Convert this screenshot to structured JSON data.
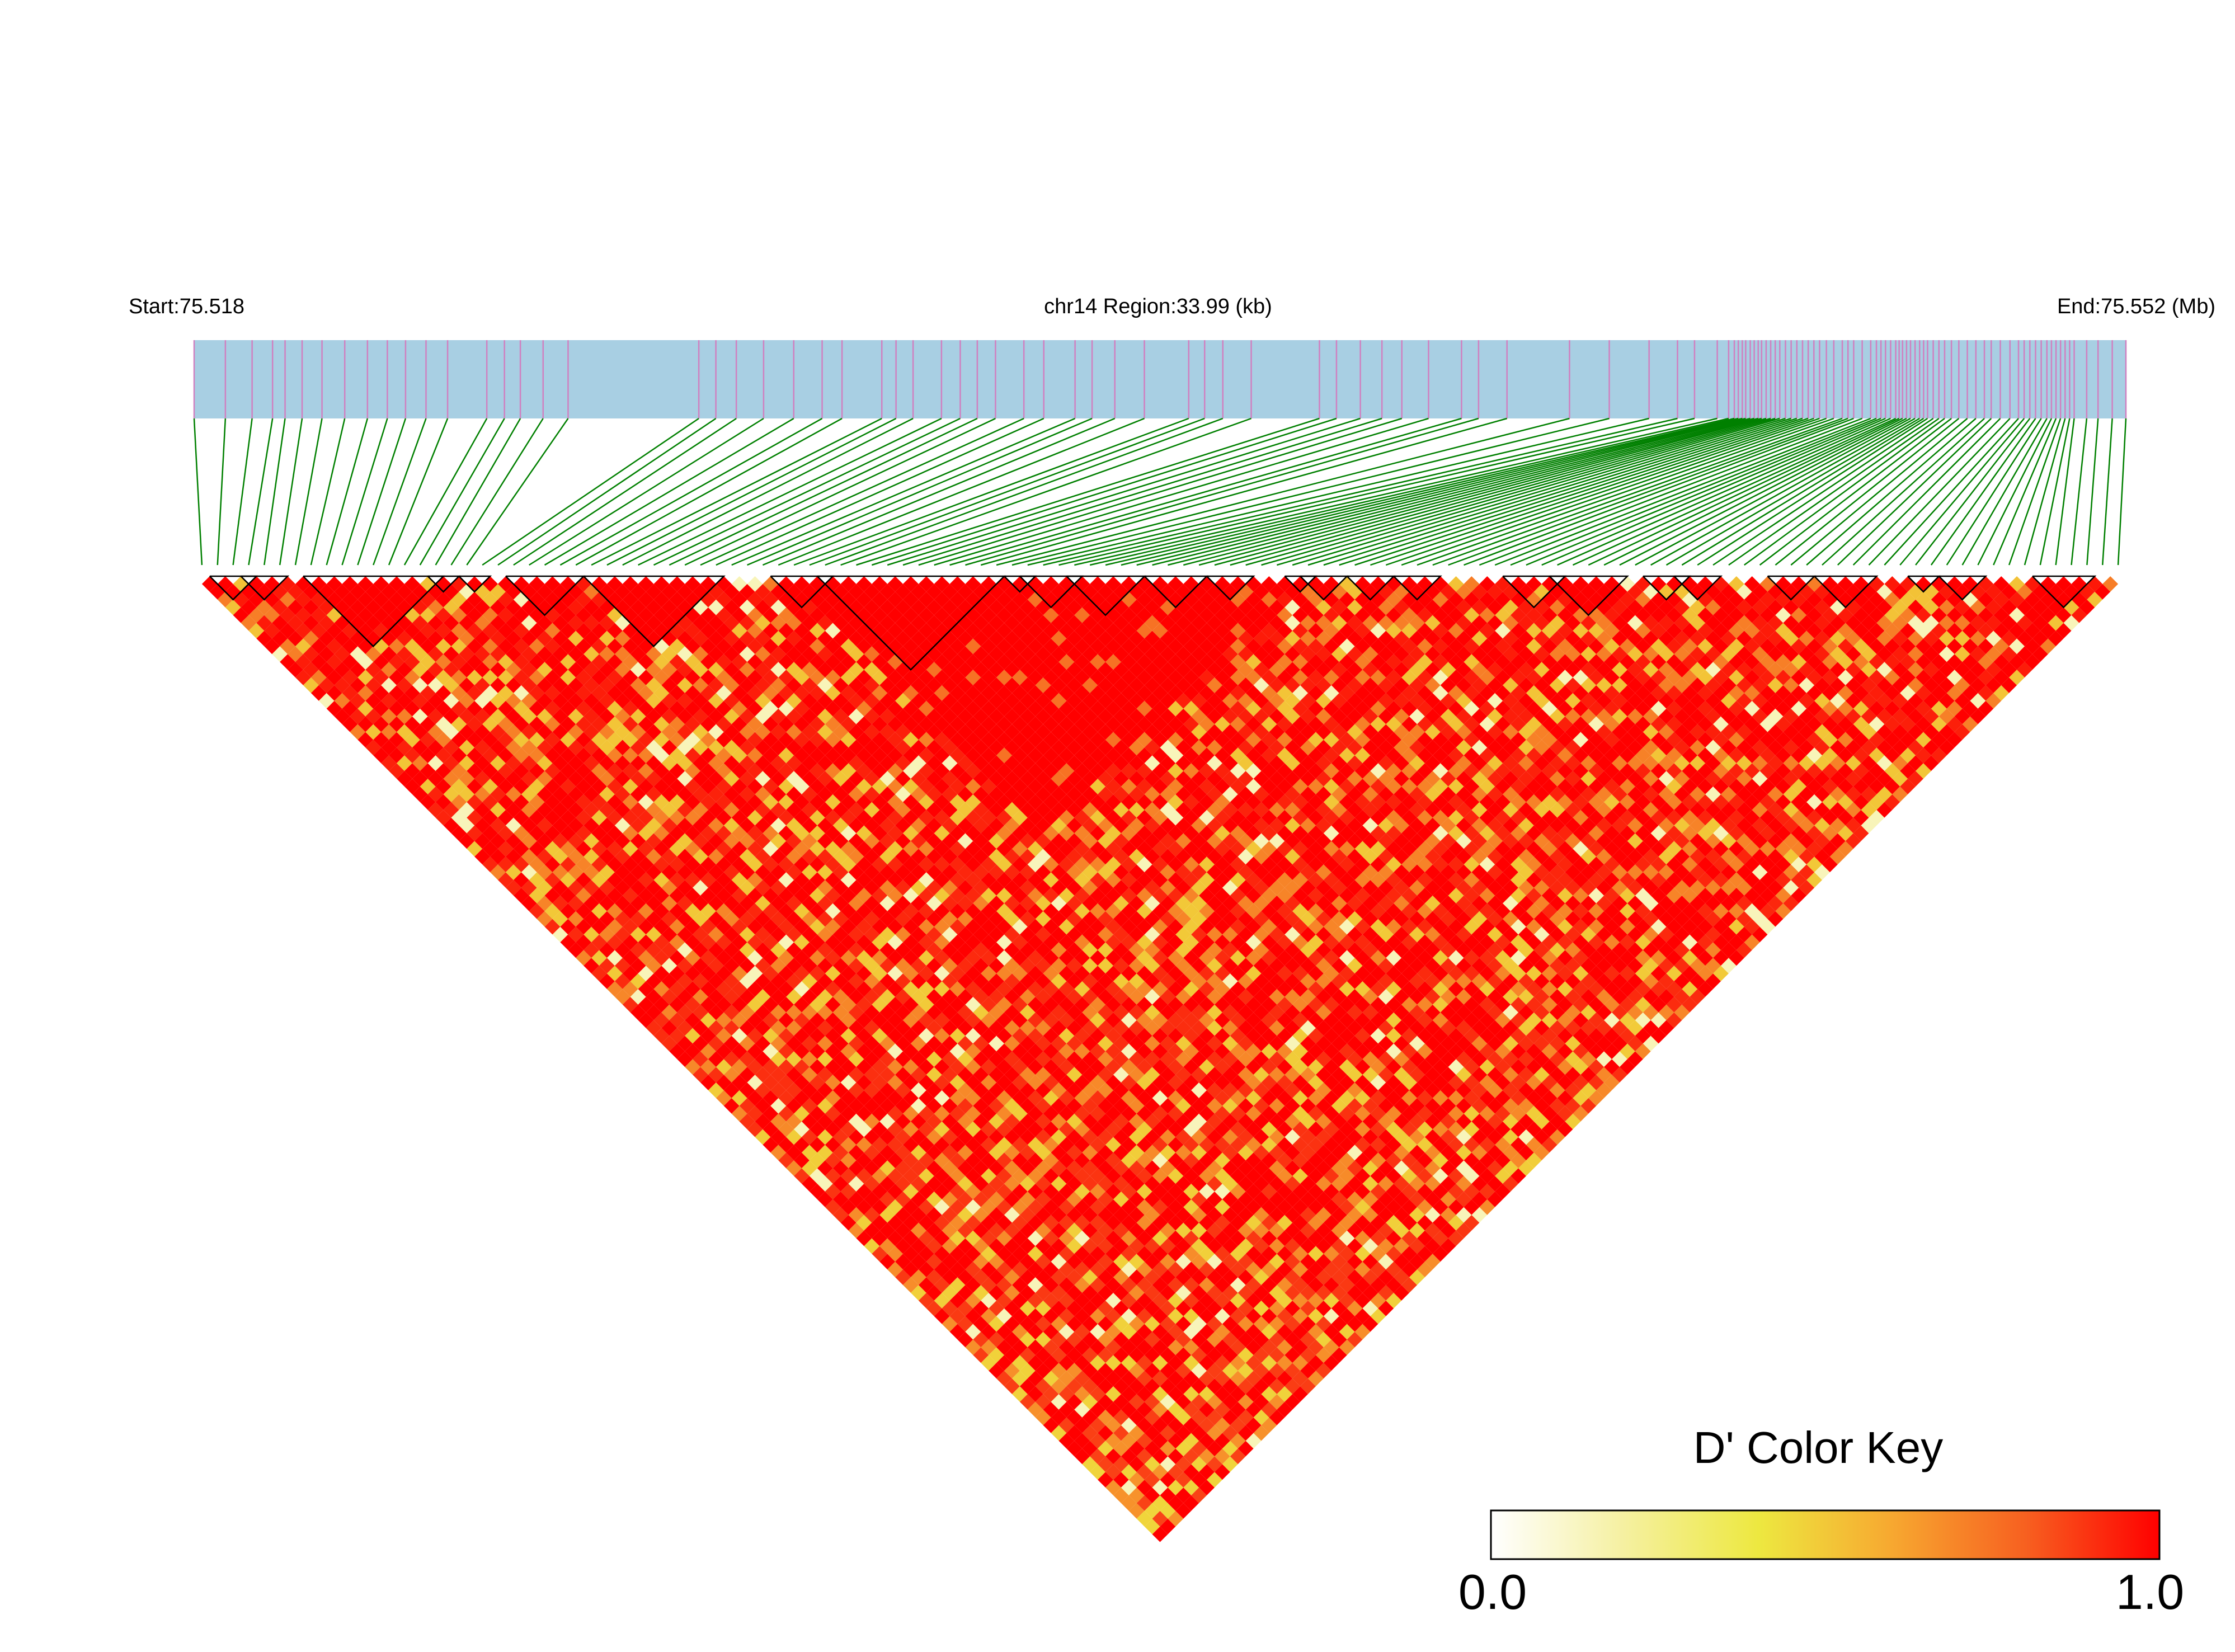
{
  "chart_data": {
    "type": "heatmap",
    "title": "chr14 Region:33.99 (kb)",
    "start_label": "Start:75.518",
    "end_label": "End:75.552 (Mb)",
    "region": {
      "chromosome": "chr14",
      "start_mb": 75.518,
      "end_mb": 75.552,
      "length_kb": 33.99
    },
    "n_snps": 124,
    "snp_positions_kb": [
      0.0,
      0.55,
      1.02,
      1.38,
      1.6,
      1.9,
      2.25,
      2.65,
      3.05,
      3.4,
      3.72,
      4.08,
      4.46,
      5.15,
      5.46,
      5.74,
      6.14,
      6.58,
      8.88,
      9.18,
      9.54,
      10.02,
      10.55,
      11.05,
      11.4,
      12.1,
      12.35,
      12.65,
      13.15,
      13.48,
      13.78,
      14.1,
      14.6,
      14.95,
      15.5,
      15.8,
      16.2,
      16.72,
      17.5,
      17.78,
      18.1,
      18.6,
      19.8,
      20.1,
      20.52,
      20.9,
      21.25,
      21.72,
      22.3,
      22.6,
      23.1,
      24.2,
      24.9,
      25.6,
      26.1,
      26.4,
      26.8,
      27.0,
      27.1,
      27.17,
      27.24,
      27.3,
      27.38,
      27.45,
      27.52,
      27.58,
      27.66,
      27.74,
      27.82,
      27.9,
      28.0,
      28.1,
      28.2,
      28.3,
      28.4,
      28.5,
      28.6,
      28.72,
      28.85,
      29.0,
      29.1,
      29.2,
      29.35,
      29.5,
      29.6,
      29.68,
      29.76,
      29.85,
      29.94,
      30.0,
      30.06,
      30.13,
      30.2,
      30.28,
      30.36,
      30.43,
      30.5,
      30.6,
      30.7,
      30.8,
      30.92,
      31.05,
      31.2,
      31.35,
      31.5,
      31.62,
      31.78,
      31.95,
      32.1,
      32.2,
      32.3,
      32.4,
      32.5,
      32.6,
      32.68,
      32.76,
      32.84,
      32.92,
      33.0,
      33.08,
      33.3,
      33.5,
      33.75,
      33.99
    ],
    "haplotype_blocks": [
      [
        1,
        3
      ],
      [
        3,
        5
      ],
      [
        7,
        15
      ],
      [
        15,
        16
      ],
      [
        17,
        18
      ],
      [
        20,
        24
      ],
      [
        25,
        33
      ],
      [
        37,
        40
      ],
      [
        40,
        51
      ],
      [
        52,
        53
      ],
      [
        53,
        56
      ],
      [
        56,
        60
      ],
      [
        61,
        64
      ],
      [
        65,
        67
      ],
      [
        70,
        71
      ],
      [
        71,
        73
      ],
      [
        74,
        76
      ],
      [
        77,
        79
      ],
      [
        84,
        87
      ],
      [
        87,
        91
      ],
      [
        93,
        95
      ],
      [
        95,
        97
      ],
      [
        101,
        103
      ],
      [
        104,
        107
      ],
      [
        110,
        111
      ],
      [
        112,
        114
      ],
      [
        118,
        121
      ]
    ],
    "d_prime_model": "estimated pairwise D' values; high (~1.0) in blocks, decaying with distance",
    "color_key": {
      "title": "D' Color Key",
      "min_label": "0.0",
      "max_label": "1.0",
      "min": 0.0,
      "max": 1.0,
      "stops": [
        "#ffffff",
        "#f5f0a0",
        "#ede840",
        "#f7a830",
        "#f76020",
        "#ff0000"
      ]
    },
    "colors": {
      "gene_track": "#a8cfe3",
      "snp_tick": "#d080c0",
      "connector": "#008000",
      "block_outline": "#000000"
    },
    "xlabel": "",
    "ylabel": ""
  }
}
